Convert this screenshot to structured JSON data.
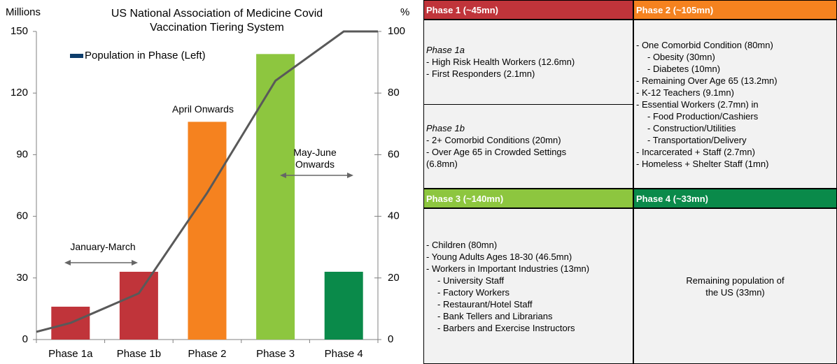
{
  "chart_data": {
    "type": "bar",
    "title": "US National Association of Medicine Covid Vaccination Tiering System",
    "y_label": "Millions",
    "y2_label": "%",
    "categories": [
      "Phase 1a",
      "Phase 1b",
      "Phase 2",
      "Phase 3",
      "Phase 4"
    ],
    "series": [
      {
        "name": "Population in Phase (Left)",
        "color": "#0d3d6b",
        "colors": [
          "#c0343a",
          "#c0343a",
          "#f5821f",
          "#8dc63f",
          "#0a8a4a"
        ],
        "values": [
          16,
          33,
          106,
          139,
          33
        ]
      },
      {
        "type": "line",
        "axis": "y2",
        "color": "#595959",
        "x": [
          -0.5,
          0,
          1,
          2,
          3,
          4,
          4.5
        ],
        "values": [
          2.5,
          5.4,
          15,
          47.6,
          84,
          100,
          100
        ]
      }
    ],
    "ylim": [
      0,
      150
    ],
    "yticks": [
      0,
      30,
      60,
      90,
      120,
      150
    ],
    "y2lim": [
      0,
      100
    ],
    "y2ticks": [
      0,
      20,
      40,
      60,
      80,
      100
    ],
    "legend": "upper left",
    "annotations": [
      {
        "text": "April Onwards"
      },
      {
        "text": "January-March",
        "arrow": true
      },
      {
        "text": "May-June Onwards",
        "arrow": true
      }
    ]
  },
  "table": {
    "phases": [
      {
        "header": "Phase 1 (~45mn)",
        "color": "#c0343a",
        "groups": [
          {
            "title": "Phase 1a",
            "items": [
              {
                "text": "- High Risk Health Workers (12.6mn)"
              },
              {
                "text": "- First Responders (2.1mn)"
              }
            ]
          },
          {
            "title": "Phase 1b",
            "items": [
              {
                "text": "- 2+ Comorbid Conditions (20mn)"
              },
              {
                "text": "- Over Age 65 in Crowded Settings (6.8mn)"
              }
            ]
          }
        ]
      },
      {
        "header": "Phase 2 (~105mn)",
        "color": "#f5821f",
        "groups": [
          {
            "items": [
              {
                "text": "- One Comorbid Condition (80mn)",
                "sub": [
                  "- Obesity (30mn)",
                  "- Diabetes (10mn)"
                ]
              },
              {
                "text": "- Remaining Over Age 65 (13.2mn)"
              },
              {
                "text": "- K-12 Teachers (9.1mn)"
              },
              {
                "text": "- Essential Workers (2.7mn) in",
                "sub": [
                  "- Food Production/Cashiers",
                  "- Construction/Utilities",
                  "- Transportation/Delivery"
                ]
              },
              {
                "text": "- Incarcerated + Staff (2.7mn)"
              },
              {
                "text": "- Homeless + Shelter Staff (1mn)"
              }
            ]
          }
        ]
      },
      {
        "header": "Phase 3 (~140mn)",
        "color": "#8dc63f",
        "groups": [
          {
            "items": [
              {
                "text": "- Children (80mn)"
              },
              {
                "text": "- Young Adults Ages 18-30 (46.5mn)"
              },
              {
                "text": "- Workers in Important Industries (13mn)",
                "sub": [
                  "- University Staff",
                  "- Factory Workers",
                  "- Restaurant/Hotel Staff",
                  "- Bank Tellers and Librarians",
                  "- Barbers and Exercise Instructors"
                ]
              }
            ]
          }
        ]
      },
      {
        "header": "Phase 4 (~33mn)",
        "color": "#0a8a4a",
        "note": "Remaining population of the US (33mn)"
      }
    ]
  }
}
